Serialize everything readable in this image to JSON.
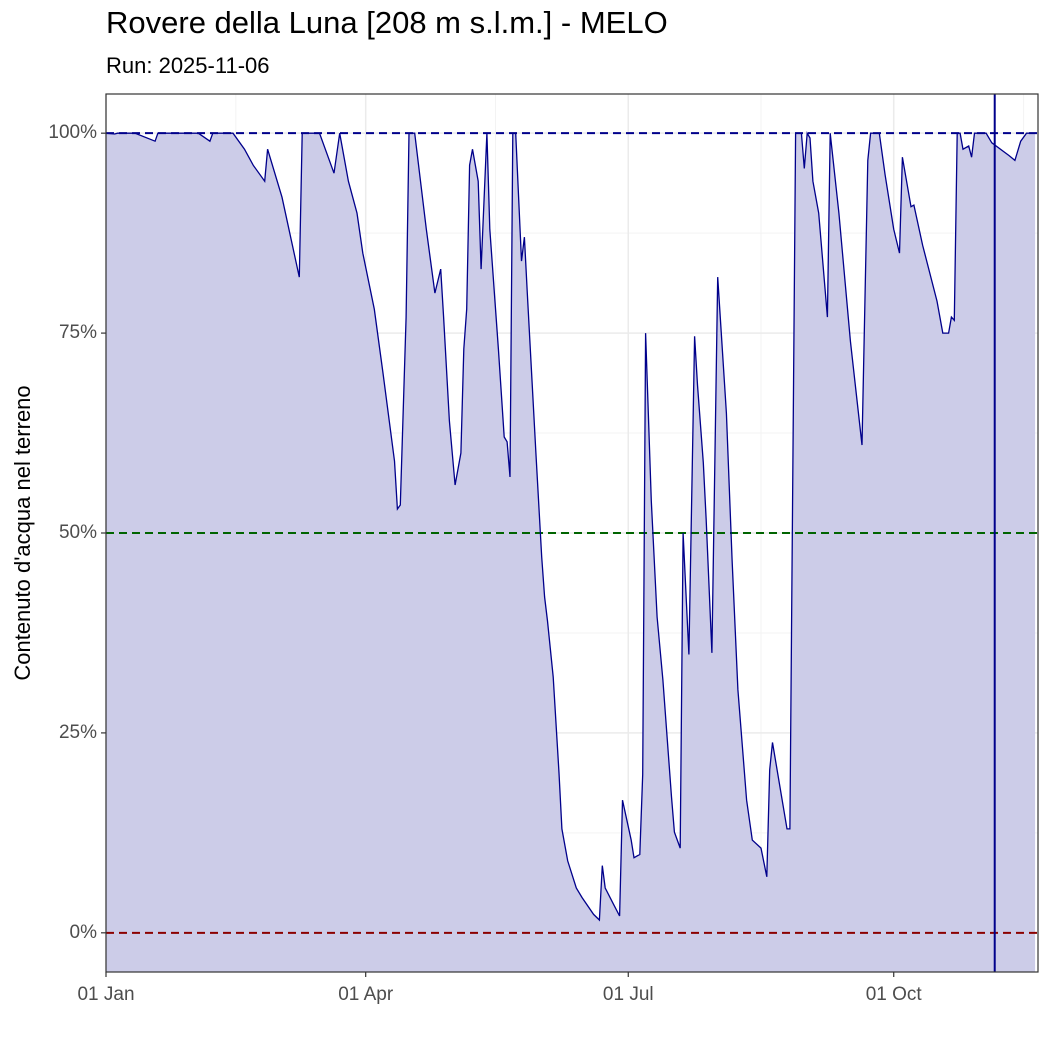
{
  "chart_data": {
    "type": "area",
    "title": "Rovere della Luna [208 m s.l.m.] - MELO",
    "subtitle": "Run: 2025-11-06",
    "y_label": "Contenuto d'acqua nel terreno",
    "x": [
      "01 Jan",
      "04 Jan",
      "05 Jan",
      "11 Jan",
      "18 Jan",
      "19 Jan",
      "02 Feb",
      "06 Feb",
      "07 Feb",
      "14 Feb",
      "18 Feb",
      "21 Feb",
      "25 Feb",
      "26 Feb",
      "03 Mar",
      "09 Mar",
      "10 Mar",
      "16 Mar",
      "21 Mar",
      "23 Mar",
      "26 Mar",
      "29 Mar",
      "31 Mar",
      "04 Apr",
      "07 Apr",
      "11 Apr",
      "12 Apr",
      "13 Apr",
      "15 Apr",
      "16 Apr",
      "18 Apr",
      "20 Apr",
      "22 Apr",
      "25 Apr",
      "27 Apr",
      "28 Apr",
      "30 Apr",
      "02 May",
      "04 May",
      "05 May",
      "06 May",
      "07 May",
      "08 May",
      "10 May",
      "11 May",
      "13 May",
      "14 May",
      "17 May",
      "19 May",
      "20 May",
      "21 May",
      "22 May",
      "23 May",
      "24 May",
      "25 May",
      "26 May",
      "27 May",
      "30 May",
      "01 Jun",
      "02 Jun",
      "03 Jun",
      "05 Jun",
      "07 Jun",
      "08 Jun",
      "10 Jun",
      "13 Jun",
      "15 Jun",
      "19 Jun",
      "21 Jun",
      "22 Jun",
      "23 Jun",
      "26 Jun",
      "28 Jun",
      "29 Jun",
      "02 Jul",
      "03 Jul",
      "05 Jul",
      "06 Jul",
      "07 Jul",
      "09 Jul",
      "11 Jul",
      "13 Jul",
      "16 Jul",
      "17 Jul",
      "19 Jul",
      "20 Jul",
      "22 Jul",
      "24 Jul",
      "25 Jul",
      "27 Jul",
      "28 Jul",
      "30 Jul",
      "01 Aug",
      "04 Aug",
      "06 Aug",
      "08 Aug",
      "11 Aug",
      "13 Aug",
      "16 Aug",
      "18 Aug",
      "19 Aug",
      "20 Aug",
      "25 Aug",
      "26 Aug",
      "28 Aug",
      "30 Aug",
      "31 Aug",
      "01 Sep",
      "02 Sep",
      "03 Sep",
      "05 Sep",
      "08 Sep",
      "09 Sep",
      "12 Sep",
      "16 Sep",
      "20 Sep",
      "22 Sep",
      "23 Sep",
      "26 Sep",
      "28 Sep",
      "01 Oct",
      "03 Oct",
      "04 Oct",
      "07 Oct",
      "08 Oct",
      "11 Oct",
      "16 Oct",
      "18 Oct",
      "20 Oct",
      "21 Oct",
      "22 Oct",
      "23 Oct",
      "24 Oct",
      "25 Oct",
      "27 Oct",
      "28 Oct",
      "29 Oct",
      "02 Nov",
      "04 Nov",
      "10 Nov",
      "12 Nov",
      "14 Nov",
      "16 Nov",
      "19 Nov"
    ],
    "values": [
      100,
      99.9,
      100,
      100,
      99,
      100,
      100,
      99,
      100,
      100,
      98,
      96,
      94,
      98,
      92,
      82,
      100,
      100,
      95,
      100,
      94,
      90,
      85,
      78,
      70,
      59,
      53,
      53.5,
      77,
      100,
      100,
      94,
      88,
      80,
      83,
      77,
      64,
      56,
      60,
      73,
      78,
      96,
      98,
      94,
      83,
      100,
      88,
      73,
      62,
      61.4,
      57,
      100,
      100,
      92,
      84,
      87,
      80,
      60,
      47,
      42,
      39,
      32,
      20,
      13,
      9,
      5.6,
      4.4,
      2.3,
      1.6,
      8.4,
      5.6,
      3.5,
      2.1,
      16.6,
      11.6,
      9.4,
      9.8,
      19.8,
      75,
      54,
      39.5,
      31.6,
      17,
      12.6,
      10.6,
      50,
      34.8,
      74.6,
      68.5,
      58.8,
      51.6,
      35,
      82,
      65,
      46.6,
      30.4,
      16.6,
      11.6,
      10.6,
      7,
      20.4,
      23.8,
      13,
      13,
      100,
      100,
      95.6,
      100,
      99.4,
      94,
      90,
      77,
      100,
      90,
      74,
      61,
      96.6,
      100,
      100,
      94.8,
      88,
      85,
      97,
      90.8,
      91,
      86,
      79,
      75,
      75,
      77,
      76.6,
      100,
      100,
      98,
      98.4,
      97,
      100,
      100,
      98.8,
      97.2,
      96.6,
      99,
      100,
      100
    ],
    "line_color": "#00008b",
    "fill_color": "#ccccE8",
    "xlim": [
      "01 Jan",
      "20 Nov"
    ],
    "xticks": [
      "01 Jan",
      "01 Apr",
      "01 Jul",
      "01 Oct"
    ],
    "minor_xticks": [
      "15 Feb",
      "16 May",
      "16 Aug",
      "15 Nov"
    ],
    "ylim": [
      -4.9,
      104.9
    ],
    "yticks": [
      {
        "value": 0,
        "label": "0%"
      },
      {
        "value": 25,
        "label": "25%"
      },
      {
        "value": 50,
        "label": "50%"
      },
      {
        "value": 75,
        "label": "75%"
      },
      {
        "value": 100,
        "label": "100%"
      }
    ],
    "minor_yticks": [
      12.5,
      37.5,
      62.5,
      87.5
    ],
    "hlines": [
      {
        "value": 100,
        "color": "#00008b"
      },
      {
        "value": 50,
        "color": "#006400"
      },
      {
        "value": 0,
        "color": "#8b0000"
      }
    ],
    "vline": {
      "x": "05 Nov",
      "color": "#00008b"
    },
    "grid": true
  }
}
